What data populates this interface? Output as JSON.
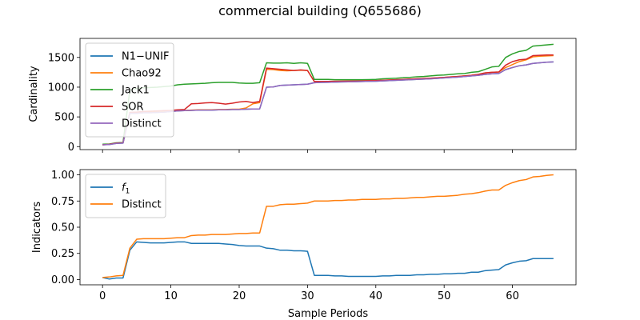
{
  "figure": {
    "title": "commercial building (Q655686)",
    "xlabel": "Sample Periods"
  },
  "chart_data": [
    {
      "type": "line",
      "ylabel": "Cardinality",
      "xlim": [
        -3.3,
        69.3
      ],
      "ylim": [
        -50,
        1820
      ],
      "xticks": [
        0,
        10,
        20,
        30,
        40,
        50,
        60
      ],
      "yticks": [
        0,
        500,
        1000,
        1500
      ],
      "grid": false,
      "legend_position": "upper-left",
      "series": [
        {
          "name": "N1−UNIF",
          "color": "#1f77b4",
          "x": [
            0,
            1,
            2,
            3,
            4,
            5,
            6,
            7,
            8,
            9,
            10,
            11,
            12,
            13,
            14,
            15,
            16,
            17,
            18,
            19,
            20,
            21,
            22,
            23,
            24,
            25,
            26,
            27,
            28,
            29,
            30,
            31,
            32,
            33,
            34,
            35,
            36,
            37,
            38,
            39,
            40,
            41,
            42,
            43,
            44,
            45,
            46,
            47,
            48,
            49,
            50,
            51,
            52,
            53,
            54,
            55,
            56,
            57,
            58,
            59,
            60,
            61,
            62,
            63,
            64,
            65,
            66
          ],
          "y": [
            30,
            35,
            55,
            60,
            560,
            560,
            570,
            570,
            575,
            580,
            590,
            600,
            605,
            610,
            615,
            615,
            615,
            620,
            620,
            625,
            625,
            630,
            632,
            635,
            1000,
            1005,
            1030,
            1035,
            1040,
            1045,
            1050,
            1075,
            1080,
            1082,
            1085,
            1088,
            1090,
            1092,
            1095,
            1098,
            1100,
            1105,
            1110,
            1115,
            1120,
            1125,
            1130,
            1135,
            1140,
            1148,
            1155,
            1162,
            1170,
            1180,
            1190,
            1200,
            1215,
            1225,
            1230,
            1295,
            1330,
            1360,
            1375,
            1400,
            1410,
            1420,
            1425
          ]
        },
        {
          "name": "Chao92",
          "color": "#ff7f0e",
          "x": [
            0,
            1,
            2,
            3,
            4,
            5,
            6,
            7,
            8,
            9,
            10,
            11,
            12,
            13,
            14,
            15,
            16,
            17,
            18,
            19,
            20,
            21,
            22,
            23,
            24,
            25,
            26,
            27,
            28,
            29,
            30,
            31,
            32,
            33,
            34,
            35,
            36,
            37,
            38,
            39,
            40,
            41,
            42,
            43,
            44,
            45,
            46,
            47,
            48,
            49,
            50,
            51,
            52,
            53,
            54,
            55,
            56,
            57,
            58,
            59,
            60,
            61,
            62,
            63,
            64,
            65,
            66
          ],
          "y": [
            30,
            40,
            60,
            65,
            570,
            575,
            580,
            585,
            590,
            595,
            600,
            605,
            610,
            615,
            620,
            620,
            620,
            625,
            625,
            630,
            630,
            650,
            720,
            740,
            1300,
            1295,
            1280,
            1275,
            1280,
            1285,
            1280,
            1095,
            1095,
            1097,
            1098,
            1100,
            1102,
            1104,
            1106,
            1108,
            1110,
            1115,
            1120,
            1125,
            1130,
            1135,
            1140,
            1145,
            1150,
            1158,
            1165,
            1172,
            1180,
            1190,
            1200,
            1215,
            1240,
            1250,
            1255,
            1330,
            1380,
            1430,
            1460,
            1510,
            1520,
            1525,
            1530
          ]
        },
        {
          "name": "Jack1",
          "color": "#2ca02c",
          "x": [
            0,
            1,
            2,
            3,
            4,
            5,
            6,
            7,
            8,
            9,
            10,
            11,
            12,
            13,
            14,
            15,
            16,
            17,
            18,
            19,
            20,
            21,
            22,
            23,
            24,
            25,
            26,
            27,
            28,
            29,
            30,
            31,
            32,
            33,
            34,
            35,
            36,
            37,
            38,
            39,
            40,
            41,
            42,
            43,
            44,
            45,
            46,
            47,
            48,
            49,
            50,
            51,
            52,
            53,
            54,
            55,
            56,
            57,
            58,
            59,
            60,
            61,
            62,
            63,
            64,
            65,
            66
          ],
          "y": [
            40,
            45,
            65,
            70,
            950,
            980,
            990,
            995,
            1000,
            1010,
            1020,
            1040,
            1050,
            1055,
            1060,
            1065,
            1075,
            1080,
            1080,
            1080,
            1070,
            1065,
            1065,
            1075,
            1410,
            1405,
            1405,
            1410,
            1400,
            1410,
            1400,
            1130,
            1130,
            1130,
            1125,
            1125,
            1125,
            1125,
            1125,
            1128,
            1130,
            1140,
            1145,
            1150,
            1160,
            1165,
            1175,
            1180,
            1190,
            1200,
            1205,
            1215,
            1225,
            1230,
            1250,
            1260,
            1300,
            1340,
            1350,
            1500,
            1560,
            1600,
            1620,
            1690,
            1700,
            1710,
            1720
          ]
        },
        {
          "name": "SOR",
          "color": "#d62728",
          "x": [
            0,
            1,
            2,
            3,
            4,
            5,
            6,
            7,
            8,
            9,
            10,
            11,
            12,
            13,
            14,
            15,
            16,
            17,
            18,
            19,
            20,
            21,
            22,
            23,
            24,
            25,
            26,
            27,
            28,
            29,
            30,
            31,
            32,
            33,
            34,
            35,
            36,
            37,
            38,
            39,
            40,
            41,
            42,
            43,
            44,
            45,
            46,
            47,
            48,
            49,
            50,
            51,
            52,
            53,
            54,
            55,
            56,
            57,
            58,
            59,
            60,
            61,
            62,
            63,
            64,
            65,
            66
          ],
          "y": [
            30,
            40,
            60,
            65,
            575,
            580,
            590,
            595,
            600,
            605,
            610,
            620,
            625,
            720,
            725,
            735,
            740,
            730,
            715,
            730,
            750,
            760,
            740,
            760,
            1320,
            1310,
            1300,
            1290,
            1280,
            1290,
            1280,
            1095,
            1095,
            1097,
            1098,
            1100,
            1102,
            1104,
            1106,
            1108,
            1110,
            1115,
            1120,
            1125,
            1130,
            1135,
            1140,
            1145,
            1150,
            1158,
            1165,
            1172,
            1180,
            1190,
            1200,
            1215,
            1240,
            1250,
            1255,
            1370,
            1430,
            1460,
            1470,
            1530,
            1535,
            1540,
            1540
          ]
        },
        {
          "name": "Distinct",
          "color": "#9467bd",
          "x": [
            0,
            1,
            2,
            3,
            4,
            5,
            6,
            7,
            8,
            9,
            10,
            11,
            12,
            13,
            14,
            15,
            16,
            17,
            18,
            19,
            20,
            21,
            22,
            23,
            24,
            25,
            26,
            27,
            28,
            29,
            30,
            31,
            32,
            33,
            34,
            35,
            36,
            37,
            38,
            39,
            40,
            41,
            42,
            43,
            44,
            45,
            46,
            47,
            48,
            49,
            50,
            51,
            52,
            53,
            54,
            55,
            56,
            57,
            58,
            59,
            60,
            61,
            62,
            63,
            64,
            65,
            66
          ],
          "y": [
            30,
            35,
            55,
            60,
            560,
            560,
            570,
            570,
            575,
            580,
            590,
            600,
            605,
            610,
            615,
            615,
            615,
            620,
            620,
            625,
            625,
            630,
            632,
            635,
            1000,
            1005,
            1030,
            1035,
            1040,
            1045,
            1050,
            1075,
            1080,
            1082,
            1085,
            1088,
            1090,
            1092,
            1095,
            1098,
            1100,
            1105,
            1110,
            1115,
            1120,
            1125,
            1130,
            1135,
            1140,
            1148,
            1155,
            1162,
            1170,
            1180,
            1190,
            1200,
            1215,
            1225,
            1230,
            1295,
            1330,
            1360,
            1375,
            1400,
            1410,
            1420,
            1425
          ]
        }
      ]
    },
    {
      "type": "line",
      "ylabel": "Indicators",
      "xlim": [
        -3.3,
        69.3
      ],
      "ylim": [
        -0.05,
        1.05
      ],
      "xticks": [
        0,
        10,
        20,
        30,
        40,
        50,
        60
      ],
      "yticks": [
        0.0,
        0.25,
        0.5,
        0.75,
        1.0
      ],
      "ytick_labels": [
        "0.00",
        "0.25",
        "0.50",
        "0.75",
        "1.00"
      ],
      "grid": false,
      "legend_position": "upper-left",
      "series": [
        {
          "name": "f",
          "name_sub": "1",
          "color": "#1f77b4",
          "x": [
            0,
            1,
            2,
            3,
            4,
            5,
            6,
            7,
            8,
            9,
            10,
            11,
            12,
            13,
            14,
            15,
            16,
            17,
            18,
            19,
            20,
            21,
            22,
            23,
            24,
            25,
            26,
            27,
            28,
            29,
            30,
            31,
            32,
            33,
            34,
            35,
            36,
            37,
            38,
            39,
            40,
            41,
            42,
            43,
            44,
            45,
            46,
            47,
            48,
            49,
            50,
            51,
            52,
            53,
            54,
            55,
            56,
            57,
            58,
            59,
            60,
            61,
            62,
            63,
            64,
            65,
            66
          ],
          "y": [
            0.02,
            0.005,
            0.015,
            0.015,
            0.28,
            0.36,
            0.355,
            0.35,
            0.35,
            0.35,
            0.355,
            0.36,
            0.36,
            0.345,
            0.345,
            0.345,
            0.345,
            0.345,
            0.34,
            0.335,
            0.325,
            0.32,
            0.32,
            0.32,
            0.3,
            0.295,
            0.28,
            0.28,
            0.275,
            0.275,
            0.27,
            0.04,
            0.04,
            0.04,
            0.035,
            0.035,
            0.03,
            0.03,
            0.03,
            0.03,
            0.03,
            0.035,
            0.035,
            0.04,
            0.04,
            0.04,
            0.045,
            0.045,
            0.05,
            0.05,
            0.055,
            0.055,
            0.06,
            0.06,
            0.07,
            0.07,
            0.085,
            0.09,
            0.095,
            0.14,
            0.16,
            0.175,
            0.18,
            0.2,
            0.2,
            0.2,
            0.2
          ]
        },
        {
          "name": "Distinct",
          "color": "#ff7f0e",
          "x": [
            0,
            1,
            2,
            3,
            4,
            5,
            6,
            7,
            8,
            9,
            10,
            11,
            12,
            13,
            14,
            15,
            16,
            17,
            18,
            19,
            20,
            21,
            22,
            23,
            24,
            25,
            26,
            27,
            28,
            29,
            30,
            31,
            32,
            33,
            34,
            35,
            36,
            37,
            38,
            39,
            40,
            41,
            42,
            43,
            44,
            45,
            46,
            47,
            48,
            49,
            50,
            51,
            52,
            53,
            54,
            55,
            56,
            57,
            58,
            59,
            60,
            61,
            62,
            63,
            64,
            65,
            66
          ],
          "y": [
            0.02,
            0.025,
            0.035,
            0.04,
            0.3,
            0.385,
            0.39,
            0.39,
            0.39,
            0.39,
            0.395,
            0.4,
            0.4,
            0.42,
            0.425,
            0.425,
            0.43,
            0.43,
            0.43,
            0.435,
            0.44,
            0.44,
            0.445,
            0.445,
            0.7,
            0.7,
            0.715,
            0.72,
            0.72,
            0.725,
            0.73,
            0.75,
            0.75,
            0.75,
            0.755,
            0.755,
            0.76,
            0.76,
            0.765,
            0.765,
            0.765,
            0.77,
            0.77,
            0.775,
            0.775,
            0.78,
            0.785,
            0.785,
            0.79,
            0.795,
            0.795,
            0.8,
            0.805,
            0.815,
            0.82,
            0.83,
            0.845,
            0.855,
            0.855,
            0.9,
            0.925,
            0.945,
            0.955,
            0.98,
            0.985,
            0.995,
            1.0
          ]
        }
      ]
    }
  ]
}
